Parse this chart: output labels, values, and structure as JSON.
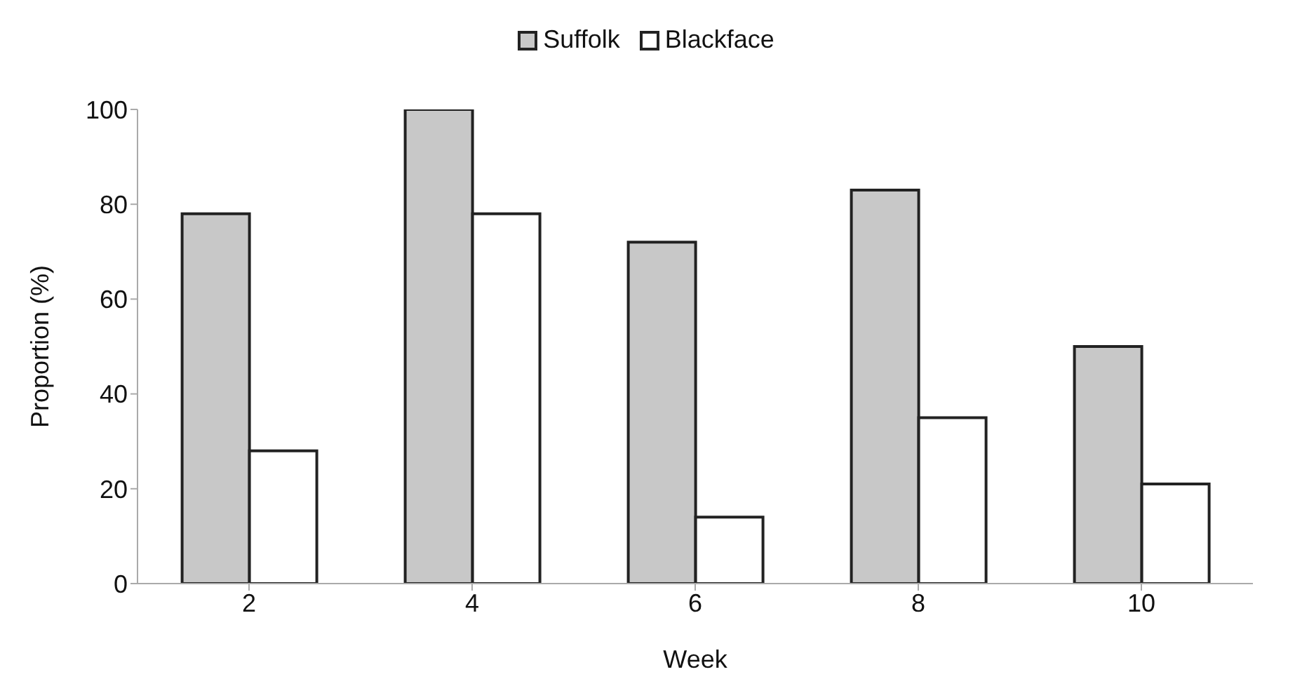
{
  "chart_data": {
    "type": "bar",
    "xlabel": "Week",
    "ylabel": "Proportion (%)",
    "categories": [
      "2",
      "4",
      "6",
      "8",
      "10"
    ],
    "series": [
      {
        "name": "Suffolk",
        "color": "#c8c8c8",
        "values": [
          78,
          100,
          72,
          83,
          50
        ]
      },
      {
        "name": "Blackface",
        "color": "#ffffff",
        "values": [
          28,
          78,
          14,
          35,
          21
        ]
      }
    ],
    "ylim": [
      0,
      100
    ],
    "yticks": [
      0,
      20,
      40,
      60,
      80,
      100
    ],
    "legend": "top",
    "grid": false
  }
}
